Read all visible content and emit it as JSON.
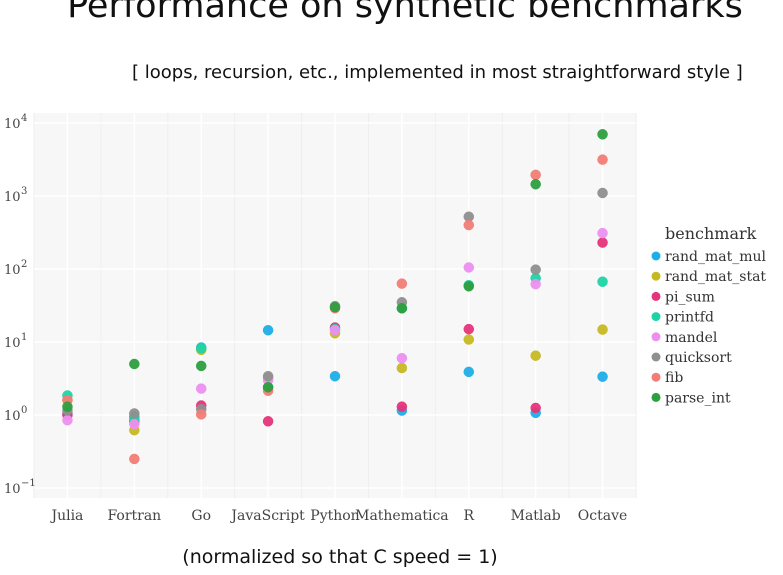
{
  "chart_data": {
    "type": "scatter",
    "title": "Performance on synthetic benchmarks",
    "subtitle": "[ loops, recursion, etc., implemented in most straightforward style ]",
    "xlabel": "(normalized so that C speed = 1)",
    "ylabel": "",
    "yscale": "log",
    "ylim": [
      0.08,
      13000
    ],
    "yticks": [
      {
        "value": 0.1,
        "base": "10",
        "exp": "−1"
      },
      {
        "value": 1,
        "base": "10",
        "exp": "0"
      },
      {
        "value": 10,
        "base": "10",
        "exp": "1"
      },
      {
        "value": 100,
        "base": "10",
        "exp": "2"
      },
      {
        "value": 1000,
        "base": "10",
        "exp": "3"
      },
      {
        "value": 10000,
        "base": "10",
        "exp": "4"
      }
    ],
    "categories": [
      "Julia",
      "Fortran",
      "Go",
      "JavaScript",
      "Python",
      "Mathematica",
      "R",
      "Matlab",
      "Octave"
    ],
    "grid": true,
    "legend_title": "benchmark",
    "legend_position": "right",
    "series": [
      {
        "name": "rand_mat_mul",
        "color": "#1eaee8",
        "values": [
          1.05,
          0.95,
          8.4,
          14.5,
          3.4,
          1.15,
          3.9,
          1.07,
          3.35
        ]
      },
      {
        "name": "rand_mat_stat",
        "color": "#c6b822",
        "values": [
          1.6,
          0.62,
          7.8,
          3.2,
          13.2,
          4.4,
          10.8,
          6.5,
          14.8
        ]
      },
      {
        "name": "pi_sum",
        "color": "#e6337a",
        "values": [
          1.0,
          0.82,
          1.35,
          0.82,
          15.8,
          1.3,
          15.0,
          1.25,
          230
        ]
      },
      {
        "name": "printfd",
        "color": "#1ed3a5",
        "values": [
          1.85,
          0.9,
          8.2,
          2.4,
          15.0,
          29,
          60,
          75,
          67
        ]
      },
      {
        "name": "mandel",
        "color": "#ec90f0",
        "values": [
          0.85,
          0.75,
          2.3,
          3.0,
          14.5,
          6.0,
          105,
          62,
          310
        ]
      },
      {
        "name": "quicksort",
        "color": "#8f8f8f",
        "values": [
          1.15,
          1.05,
          1.2,
          3.4,
          31,
          35,
          520,
          98,
          1100
        ]
      },
      {
        "name": "fib",
        "color": "#f27c76",
        "values": [
          1.6,
          0.25,
          1.02,
          2.15,
          29,
          63,
          400,
          1950,
          3150
        ]
      },
      {
        "name": "parse_int",
        "color": "#2c9f3f",
        "values": [
          1.3,
          5.0,
          4.7,
          2.4,
          30,
          29,
          58,
          1450,
          7000
        ]
      }
    ]
  }
}
